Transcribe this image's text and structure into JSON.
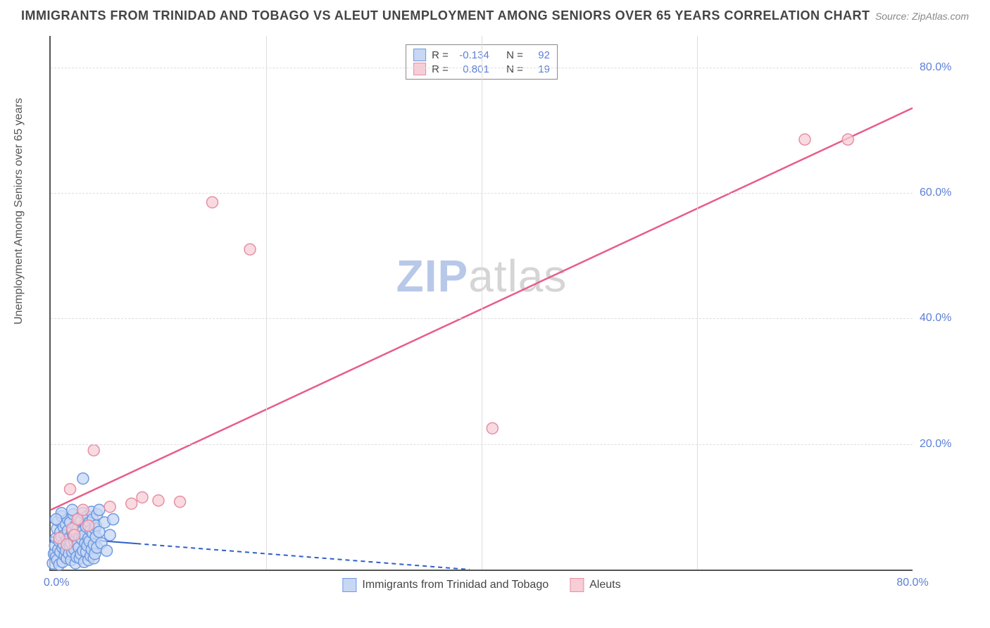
{
  "title": "IMMIGRANTS FROM TRINIDAD AND TOBAGO VS ALEUT UNEMPLOYMENT AMONG SENIORS OVER 65 YEARS CORRELATION CHART",
  "source": "Source: ZipAtlas.com",
  "watermark": {
    "zip": "ZIP",
    "atlas": "atlas"
  },
  "chart": {
    "type": "scatter",
    "background_color": "#ffffff",
    "axis_color": "#555555",
    "grid_color": "#dddddd",
    "tick_label_color": "#5b7fd6",
    "tick_fontsize": 16,
    "ylabel": "Unemployment Among Seniors over 65 years",
    "ylabel_fontsize": 16,
    "xlim": [
      0,
      80
    ],
    "ylim": [
      0,
      85
    ],
    "y_ticks": [
      20,
      40,
      60,
      80
    ],
    "y_tick_labels": [
      "20.0%",
      "40.0%",
      "60.0%",
      "80.0%"
    ],
    "x_axis_right_label": "80.0%",
    "x_origin_label": "0.0%",
    "x_vgrids": [
      20,
      40,
      60
    ],
    "marker_radius": 8,
    "marker_stroke_width": 1.5,
    "series": [
      {
        "key": "blue",
        "name": "Immigrants from Trinidad and Tobago",
        "fill": "#c7d7f4",
        "stroke": "#6f9ae0",
        "R": -0.134,
        "N": 92,
        "regression": {
          "style": "partial-solid-then-dashed",
          "solid_end_x": 8,
          "y0": 5.2,
          "y80": -5.5,
          "dash": "6,5",
          "width": 2,
          "color": "#2f5fc7"
        },
        "points": [
          [
            0.2,
            1.0
          ],
          [
            0.3,
            2.5
          ],
          [
            0.4,
            3.8
          ],
          [
            0.5,
            5.0
          ],
          [
            0.5,
            2.0
          ],
          [
            0.6,
            6.5
          ],
          [
            0.6,
            1.5
          ],
          [
            0.7,
            3.2
          ],
          [
            0.7,
            7.8
          ],
          [
            0.8,
            4.5
          ],
          [
            0.8,
            0.8
          ],
          [
            0.9,
            6.0
          ],
          [
            0.9,
            2.8
          ],
          [
            1.0,
            5.2
          ],
          [
            1.0,
            8.5
          ],
          [
            1.1,
            3.5
          ],
          [
            1.1,
            1.2
          ],
          [
            1.2,
            4.0
          ],
          [
            1.2,
            6.8
          ],
          [
            1.3,
            2.2
          ],
          [
            1.3,
            5.5
          ],
          [
            1.4,
            7.2
          ],
          [
            1.4,
            3.0
          ],
          [
            1.5,
            4.8
          ],
          [
            1.5,
            1.8
          ],
          [
            1.6,
            6.2
          ],
          [
            1.6,
            8.0
          ],
          [
            1.7,
            2.5
          ],
          [
            1.7,
            5.0
          ],
          [
            1.8,
            3.8
          ],
          [
            1.8,
            7.5
          ],
          [
            1.9,
            4.2
          ],
          [
            1.9,
            1.5
          ],
          [
            2.0,
            6.0
          ],
          [
            2.0,
            2.8
          ],
          [
            2.1,
            5.5
          ],
          [
            2.1,
            8.8
          ],
          [
            2.2,
            3.2
          ],
          [
            2.2,
            4.5
          ],
          [
            2.3,
            7.0
          ],
          [
            2.3,
            1.0
          ],
          [
            2.4,
            5.8
          ],
          [
            2.4,
            2.0
          ],
          [
            2.5,
            4.0
          ],
          [
            2.5,
            6.5
          ],
          [
            2.6,
            3.5
          ],
          [
            2.6,
            8.2
          ],
          [
            2.7,
            1.8
          ],
          [
            2.7,
            5.2
          ],
          [
            2.8,
            7.8
          ],
          [
            2.8,
            2.5
          ],
          [
            2.9,
            4.8
          ],
          [
            2.9,
            6.0
          ],
          [
            3.0,
            3.0
          ],
          [
            3.0,
            9.0
          ],
          [
            3.1,
            5.5
          ],
          [
            3.1,
            1.2
          ],
          [
            3.2,
            7.2
          ],
          [
            3.2,
            4.2
          ],
          [
            3.3,
            2.8
          ],
          [
            3.3,
            6.8
          ],
          [
            3.4,
            8.5
          ],
          [
            3.4,
            3.8
          ],
          [
            3.5,
            5.0
          ],
          [
            3.5,
            1.5
          ],
          [
            3.6,
            7.5
          ],
          [
            3.6,
            4.5
          ],
          [
            3.7,
            2.2
          ],
          [
            3.7,
            6.2
          ],
          [
            3.8,
            9.2
          ],
          [
            3.8,
            3.2
          ],
          [
            3.9,
            5.8
          ],
          [
            3.9,
            8.0
          ],
          [
            4.0,
            4.0
          ],
          [
            4.0,
            1.8
          ],
          [
            4.1,
            6.5
          ],
          [
            4.1,
            2.5
          ],
          [
            4.2,
            7.0
          ],
          [
            4.2,
            5.2
          ],
          [
            4.3,
            3.5
          ],
          [
            4.3,
            8.8
          ],
          [
            4.5,
            6.0
          ],
          [
            4.7,
            4.2
          ],
          [
            5.0,
            7.5
          ],
          [
            5.2,
            3.0
          ],
          [
            5.5,
            5.5
          ],
          [
            5.8,
            8.0
          ],
          [
            3.0,
            14.5
          ],
          [
            4.5,
            9.5
          ],
          [
            1.0,
            9.0
          ],
          [
            0.5,
            8.0
          ],
          [
            2.0,
            9.5
          ]
        ]
      },
      {
        "key": "pink",
        "name": "Aleuts",
        "fill": "#f7cdd6",
        "stroke": "#e68fa5",
        "R": 0.801,
        "N": 19,
        "regression": {
          "style": "solid",
          "y0": 9.5,
          "y80": 73.5,
          "dash": "",
          "width": 2.5,
          "color": "#e85d88"
        },
        "points": [
          [
            0.8,
            5.0
          ],
          [
            1.5,
            4.0
          ],
          [
            2.0,
            6.5
          ],
          [
            2.5,
            8.0
          ],
          [
            3.0,
            9.5
          ],
          [
            1.8,
            12.8
          ],
          [
            4.0,
            19.0
          ],
          [
            5.5,
            10.0
          ],
          [
            7.5,
            10.5
          ],
          [
            8.5,
            11.5
          ],
          [
            10.0,
            11.0
          ],
          [
            12.0,
            10.8
          ],
          [
            15.0,
            58.5
          ],
          [
            18.5,
            51.0
          ],
          [
            41.0,
            22.5
          ],
          [
            70.0,
            68.5
          ],
          [
            74.0,
            68.5
          ],
          [
            3.5,
            7.0
          ],
          [
            2.2,
            5.5
          ]
        ]
      }
    ],
    "top_legend_labels": {
      "R": "R =",
      "N": "N ="
    },
    "bottom_legend": [
      {
        "series_key": "blue"
      },
      {
        "series_key": "pink"
      }
    ]
  }
}
